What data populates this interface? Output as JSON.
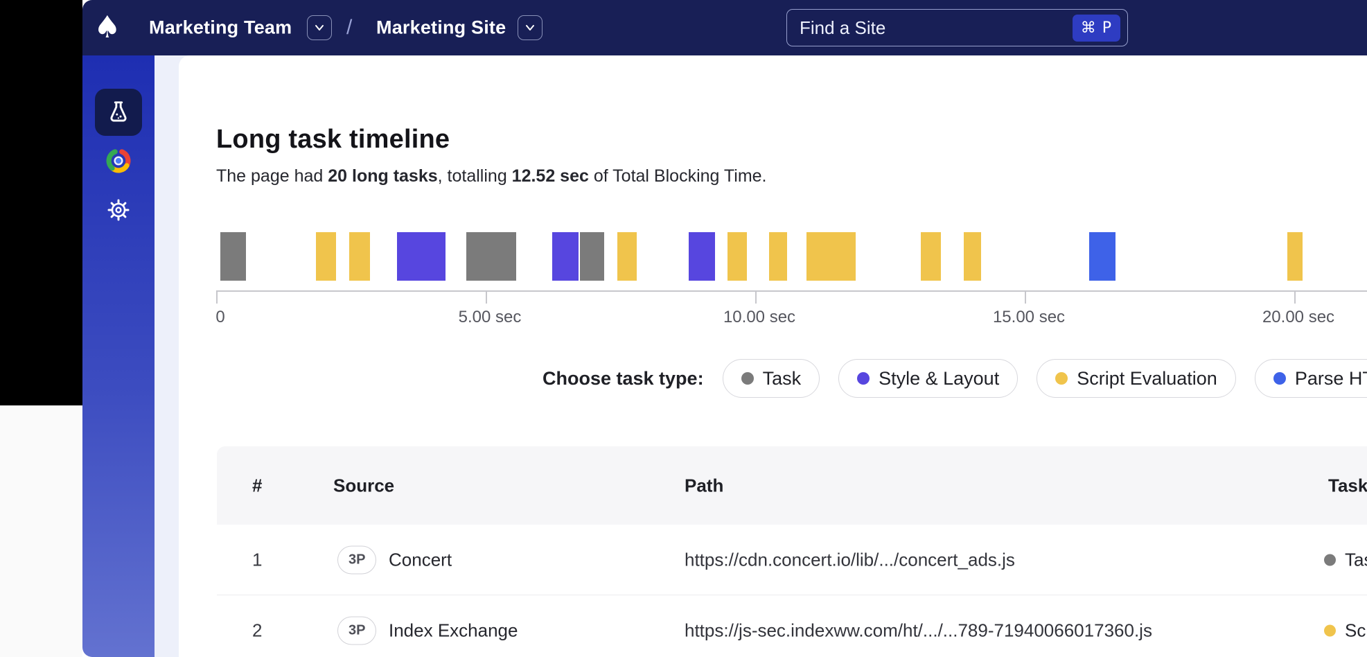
{
  "navbar": {
    "logo_icon": "spade-icon",
    "team_name": "Marketing Team",
    "separator": "/",
    "site_name": "Marketing Site",
    "search": {
      "label": "Find a Site",
      "shortcut": "⌘ P"
    }
  },
  "sidebar": {
    "items": [
      {
        "id": "tests",
        "icon": "flask-icon",
        "active": true
      },
      {
        "id": "browser",
        "icon": "chrome-icon",
        "active": false
      },
      {
        "id": "settings",
        "icon": "gear-icon",
        "active": false
      }
    ]
  },
  "main": {
    "title": "Long task timeline",
    "subtitle": {
      "prefix": "The page had ",
      "bold_tasks": "20 long tasks",
      "mid": ", totalling ",
      "bold_time": "12.52 sec",
      "suffix": " of Total Blocking Time."
    },
    "legend": {
      "label": "Choose task type:",
      "options": [
        {
          "label": "Task",
          "color": "#7b7b7b"
        },
        {
          "label": "Style & Layout",
          "color": "#5746df"
        },
        {
          "label": "Script Evaluation",
          "color": "#f0c44c"
        },
        {
          "label": "Parse HTML",
          "color": "#3e62e8"
        }
      ]
    },
    "table": {
      "columns": [
        "#",
        "Source",
        "Path",
        "Task"
      ],
      "rows": [
        {
          "num": "1",
          "badge": "3P",
          "source": "Concert",
          "path": "https://cdn.concert.io/lib/.../concert_ads.js",
          "task_type": "Task",
          "task_color": "#7b7b7b"
        },
        {
          "num": "2",
          "badge": "3P",
          "source": "Index Exchange",
          "path": "https://js-sec.indexww.com/ht/.../...789-71940066017360.js",
          "task_type": "Script Evaluation",
          "task_color": "#f0c44c"
        }
      ]
    }
  },
  "chart_data": {
    "type": "bar",
    "variant": "task-timeline",
    "title": "Long task timeline",
    "summary": {
      "long_task_count": 20,
      "total_blocking_time_sec": 12.52
    },
    "x_unit": "sec",
    "x_range_visible": [
      0,
      21.3
    ],
    "x_ticks": [
      {
        "t": 0,
        "label": "0"
      },
      {
        "t": 5,
        "label": "5.00 sec"
      },
      {
        "t": 10,
        "label": "10.00 sec"
      },
      {
        "t": 15,
        "label": "15.00 sec"
      },
      {
        "t": 20,
        "label": "20.00 sec"
      }
    ],
    "task_type_colors": {
      "Task": "#7b7b7b",
      "Style & Layout": "#5746df",
      "Script Evaluation": "#f0c44c",
      "Parse HTML": "#3e62e8"
    },
    "tasks": [
      {
        "start": 0.08,
        "end": 0.55,
        "type": "Task"
      },
      {
        "start": 1.85,
        "end": 2.22,
        "type": "Script Evaluation"
      },
      {
        "start": 2.47,
        "end": 2.85,
        "type": "Script Evaluation"
      },
      {
        "start": 3.35,
        "end": 4.25,
        "type": "Style & Layout"
      },
      {
        "start": 4.64,
        "end": 5.57,
        "type": "Task"
      },
      {
        "start": 6.23,
        "end": 6.72,
        "type": "Style & Layout"
      },
      {
        "start": 6.75,
        "end": 7.2,
        "type": "Task"
      },
      {
        "start": 7.44,
        "end": 7.8,
        "type": "Script Evaluation"
      },
      {
        "start": 8.77,
        "end": 9.25,
        "type": "Style & Layout"
      },
      {
        "start": 9.49,
        "end": 9.85,
        "type": "Script Evaluation"
      },
      {
        "start": 10.26,
        "end": 10.59,
        "type": "Script Evaluation"
      },
      {
        "start": 10.95,
        "end": 11.86,
        "type": "Script Evaluation"
      },
      {
        "start": 13.07,
        "end": 13.44,
        "type": "Script Evaluation"
      },
      {
        "start": 13.87,
        "end": 14.19,
        "type": "Script Evaluation"
      },
      {
        "start": 16.19,
        "end": 16.68,
        "type": "Parse HTML"
      },
      {
        "start": 19.87,
        "end": 20.15,
        "type": "Script Evaluation"
      }
    ]
  }
}
